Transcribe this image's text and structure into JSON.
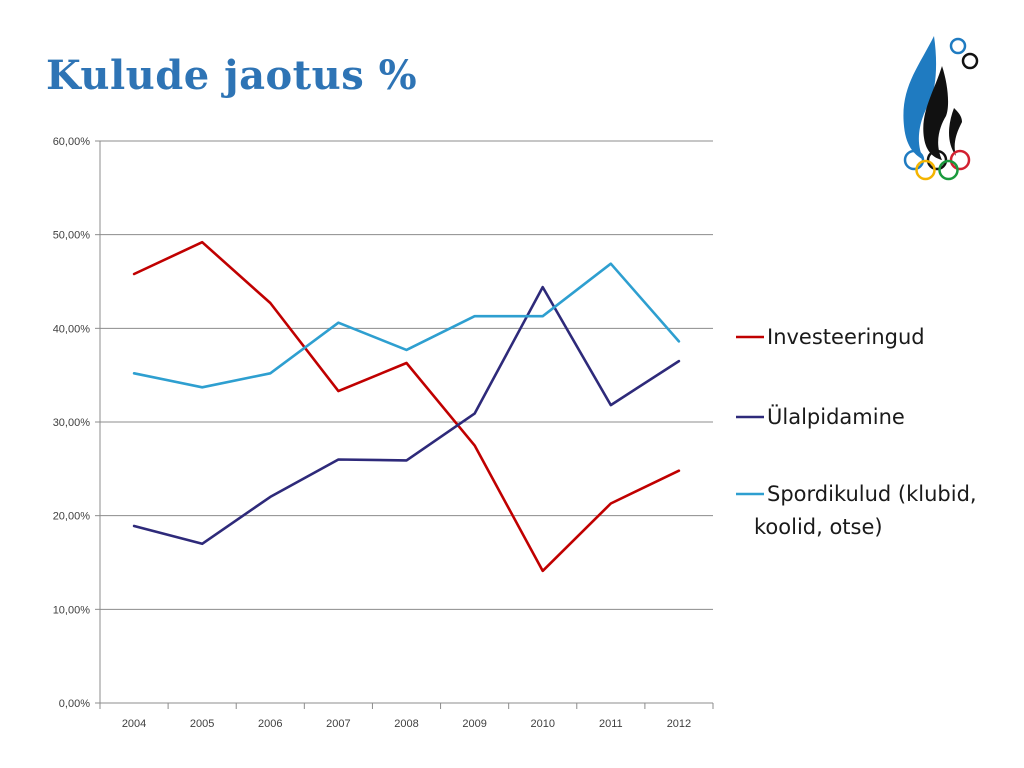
{
  "slide": {
    "title": "Kulude jaotus %"
  },
  "colors": {
    "title": "#2E74B5"
  },
  "logo": {
    "name": "estonian-olympic-committee-logo",
    "icon": "flame-with-olympic-rings"
  },
  "chart_data": {
    "type": "line",
    "x": [
      "2004",
      "2005",
      "2006",
      "2007",
      "2008",
      "2009",
      "2010",
      "2011",
      "2012"
    ],
    "ylim": [
      0,
      60
    ],
    "yticks": [
      0,
      10,
      20,
      30,
      40,
      50,
      60
    ],
    "ytick_labels": [
      "0,00%",
      "10,00%",
      "20,00%",
      "30,00%",
      "40,00%",
      "50,00%",
      "60,00%"
    ],
    "grid": true,
    "legend_position": "right",
    "xlabel": "",
    "ylabel": "",
    "series": [
      {
        "name": "Investeeringud",
        "color": "#C00000",
        "values": [
          45.8,
          49.2,
          42.7,
          33.3,
          36.3,
          27.5,
          14.1,
          21.3,
          24.8
        ]
      },
      {
        "name": "Ülalpidamine",
        "color": "#2E2A7A",
        "values": [
          18.9,
          17.0,
          22.0,
          26.0,
          25.9,
          30.9,
          44.4,
          31.8,
          36.5
        ]
      },
      {
        "name": "Spordikulud (klubid, koolid, otse)",
        "legend_lines": [
          "Spordikulud (klubid,",
          "koolid, otse)"
        ],
        "color": "#2E9FD0",
        "values": [
          35.2,
          33.7,
          35.2,
          40.6,
          37.7,
          41.3,
          41.3,
          46.9,
          38.6
        ]
      }
    ]
  }
}
